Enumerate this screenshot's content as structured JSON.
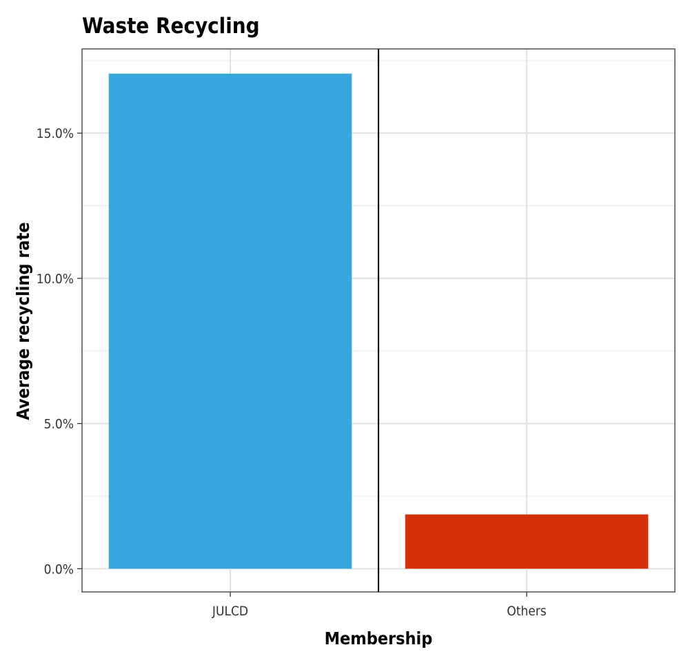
{
  "chart_data": {
    "type": "bar",
    "title": "Waste Recycling",
    "xlabel": "Membership",
    "ylabel": "Average recycling rate",
    "categories": [
      "JULCD",
      "Others"
    ],
    "values": [
      17.05,
      1.87
    ],
    "ylim": [
      -0.8,
      17.9
    ],
    "yticks": [
      0,
      5,
      10,
      15
    ],
    "ytick_labels": [
      "0.0%",
      "5.0%",
      "10.0%",
      "15.0%"
    ],
    "colors": [
      "#38a7df",
      "#d4300a"
    ],
    "grid": true,
    "legend": "none",
    "separator_line": true
  }
}
